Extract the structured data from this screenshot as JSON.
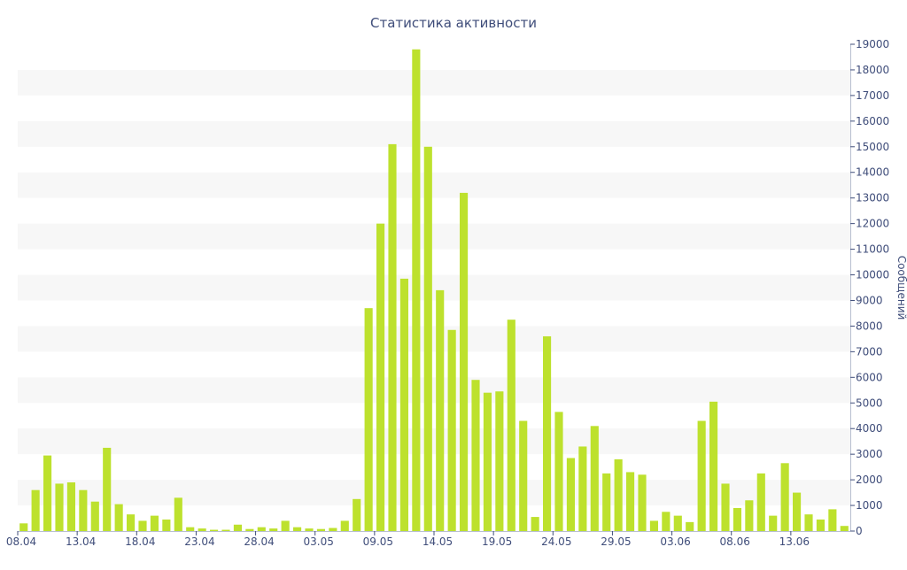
{
  "chart_data": {
    "type": "bar",
    "title": "Статистика активности",
    "xlabel": "",
    "ylabel": "Сообщений",
    "ylim": [
      0,
      19000
    ],
    "y_ticks": [
      0,
      1000,
      2000,
      3000,
      4000,
      5000,
      6000,
      7000,
      8000,
      9000,
      10000,
      11000,
      12000,
      13000,
      14000,
      15000,
      16000,
      17000,
      18000,
      19000
    ],
    "y_axis_position": "right",
    "grid": "alternating horizontal bands",
    "x_tick_labels": [
      "08.04",
      "13.04",
      "18.04",
      "23.04",
      "28.04",
      "03.05",
      "09.05",
      "14.05",
      "19.05",
      "24.05",
      "29.05",
      "03.06",
      "08.06",
      "13.06"
    ],
    "x_tick_every": 5,
    "bar_color": "#bde12d",
    "band_color": "#f7f7f7",
    "text_color": "#3f4d7a",
    "values": [
      300,
      1600,
      2950,
      1850,
      1900,
      1600,
      1150,
      3250,
      1050,
      650,
      400,
      600,
      450,
      1300,
      150,
      100,
      50,
      50,
      250,
      80,
      150,
      100,
      400,
      150,
      100,
      80,
      120,
      400,
      1250,
      8700,
      12000,
      15100,
      9850,
      18800,
      15000,
      9400,
      7850,
      13200,
      5900,
      5400,
      5450,
      8250,
      4300,
      550,
      7600,
      4650,
      2850,
      3300,
      4100,
      2250,
      2800,
      2300,
      2200,
      400,
      750,
      600,
      350,
      4300,
      5050,
      1850,
      900,
      1200,
      2250,
      600,
      2650,
      1500,
      650,
      450,
      850,
      200
    ]
  }
}
